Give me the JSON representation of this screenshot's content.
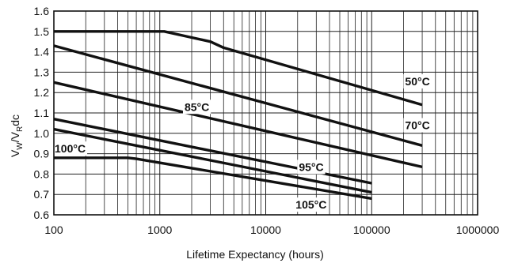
{
  "chart_data": {
    "type": "line",
    "xlabel": "Lifetime Expectancy (hours)",
    "ylabel": "V",
    "ylabel_sub1": "W",
    "ylabel_mid": "/V",
    "ylabel_sub2": "R",
    "ylabel_tail": "dc",
    "x_scale": "log",
    "xlim": [
      100,
      1000000
    ],
    "ylim": [
      0.6,
      1.6
    ],
    "grid": true,
    "x_ticks": [
      {
        "value": 100,
        "label": "100"
      },
      {
        "value": 1000,
        "label": "1000"
      },
      {
        "value": 10000,
        "label": "10000"
      },
      {
        "value": 100000,
        "label": "100000"
      },
      {
        "value": 1000000,
        "label": "1000000"
      }
    ],
    "y_ticks": [
      {
        "value": 0.6,
        "label": "0.6"
      },
      {
        "value": 0.7,
        "label": "0.7"
      },
      {
        "value": 0.8,
        "label": "0.8"
      },
      {
        "value": 0.9,
        "label": "0.9"
      },
      {
        "value": 1.0,
        "label": "1.0"
      },
      {
        "value": 1.1,
        "label": "1.1"
      },
      {
        "value": 1.2,
        "label": "1.2"
      },
      {
        "value": 1.3,
        "label": "1.3"
      },
      {
        "value": 1.4,
        "label": "1.4"
      },
      {
        "value": 1.5,
        "label": "1.5"
      },
      {
        "value": 1.6,
        "label": "1.6"
      }
    ],
    "series": [
      {
        "key": "50c",
        "name": "50°C",
        "x": [
          100,
          1000,
          1100,
          2000,
          3000,
          4000,
          300000
        ],
        "y": [
          1.5,
          1.5,
          1.5,
          1.47,
          1.45,
          1.42,
          1.14
        ],
        "label_x": 300000,
        "label_y": 1.255
      },
      {
        "key": "85c",
        "name": "85°C",
        "x": [
          100,
          300000
        ],
        "y": [
          1.43,
          0.94
        ],
        "label_x": 2500,
        "label_y": 1.13
      },
      {
        "key": "70c",
        "name": "70°C",
        "x": [
          100,
          300000
        ],
        "y": [
          1.25,
          0.835
        ],
        "label_x": 300000,
        "label_y": 1.04
      },
      {
        "key": "95c",
        "name": "95°C",
        "x": [
          100,
          100000
        ],
        "y": [
          1.07,
          0.755
        ],
        "label_x": 30000,
        "label_y": 0.835
      },
      {
        "key": "105c",
        "name": "105°C",
        "x": [
          100,
          100000
        ],
        "y": [
          1.02,
          0.71
        ],
        "label_x": 28000,
        "label_y": 0.65
      },
      {
        "key": "100c",
        "name": "100°C",
        "x": [
          100,
          500,
          600,
          100000
        ],
        "y": [
          0.88,
          0.88,
          0.875,
          0.68
        ],
        "label_x": 100,
        "label_y": 0.925
      }
    ]
  }
}
